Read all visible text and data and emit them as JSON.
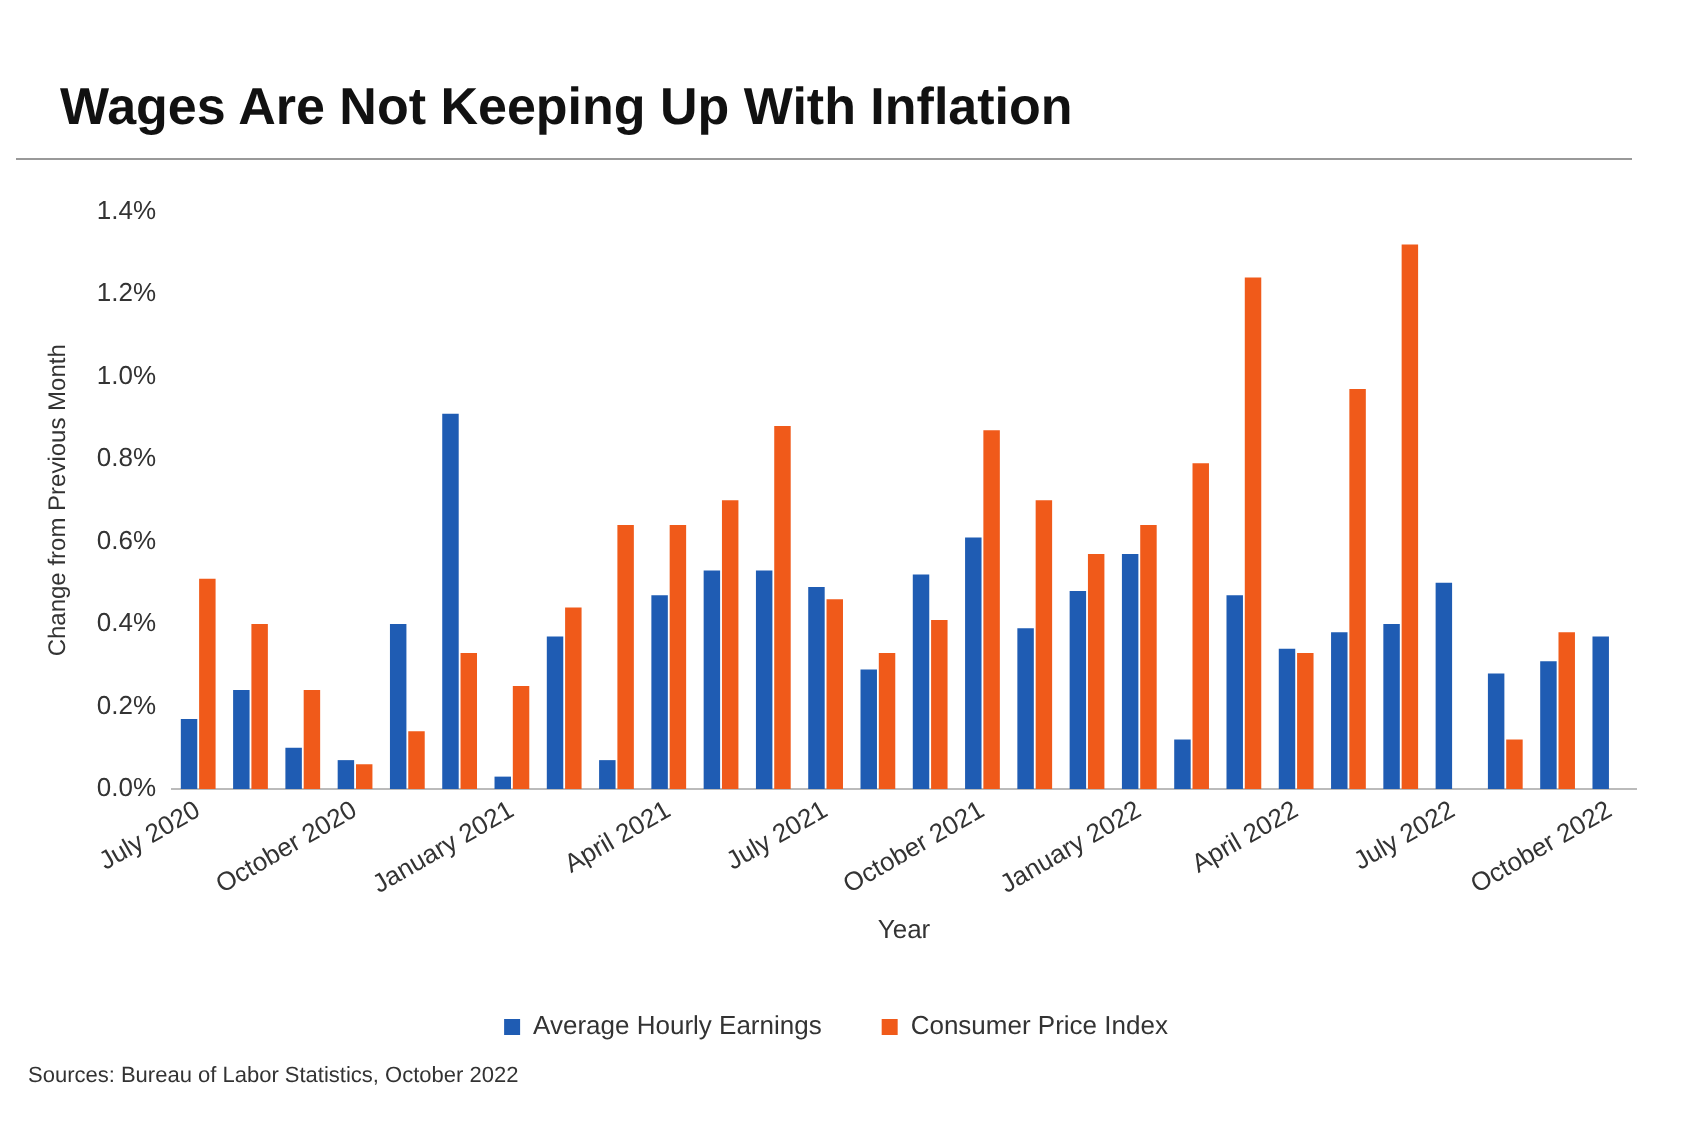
{
  "chart_data": {
    "type": "bar",
    "title": "Wages Are Not Keeping Up With Inflation",
    "xlabel": "Year",
    "ylabel": "Change from Previous Month",
    "categories": [
      "July 2020",
      null,
      null,
      "October 2020",
      null,
      null,
      "January 2021",
      null,
      null,
      "April 2021",
      null,
      null,
      "July 2021",
      null,
      null,
      "October 2021",
      null,
      null,
      "January 2022",
      null,
      null,
      "April 2022",
      null,
      null,
      "July 2022",
      null,
      null,
      "October 2022"
    ],
    "series": [
      {
        "name": "Average Hourly Earnings",
        "color": "#1f5cb3",
        "values": [
          0.17,
          0.24,
          0.1,
          0.07,
          0.4,
          0.91,
          0.03,
          0.37,
          0.07,
          0.47,
          0.53,
          0.53,
          0.49,
          0.29,
          0.52,
          0.61,
          0.39,
          0.48,
          0.57,
          0.12,
          0.47,
          0.34,
          0.38,
          0.4,
          0.5,
          0.28,
          0.31,
          0.37
        ]
      },
      {
        "name": "Consumer Price Index",
        "color": "#f05a1a",
        "values": [
          0.51,
          0.4,
          0.24,
          0.06,
          0.14,
          0.33,
          0.25,
          0.44,
          0.64,
          0.64,
          0.7,
          0.88,
          0.46,
          0.33,
          0.41,
          0.87,
          0.7,
          0.57,
          0.64,
          0.79,
          1.24,
          0.33,
          0.97,
          1.32,
          0,
          0.12,
          0.38,
          null
        ]
      }
    ],
    "ylim": [
      0,
      1.4
    ],
    "yticks": [
      {
        "value": 0,
        "label": "0.0%"
      },
      {
        "value": 0.2,
        "label": "0.2%"
      },
      {
        "value": 0.4,
        "label": "0.4%"
      },
      {
        "value": 0.6,
        "label": "0.6%"
      },
      {
        "value": 0.8,
        "label": "0.8%"
      },
      {
        "value": 1.0,
        "label": "1.0%"
      },
      {
        "value": 1.2,
        "label": "1.2%"
      },
      {
        "value": 1.4,
        "label": "1.4%"
      }
    ],
    "grid": false,
    "legend": "bottom",
    "annotations": [
      "Sources: Bureau of Labor Statistics, October 2022"
    ]
  }
}
